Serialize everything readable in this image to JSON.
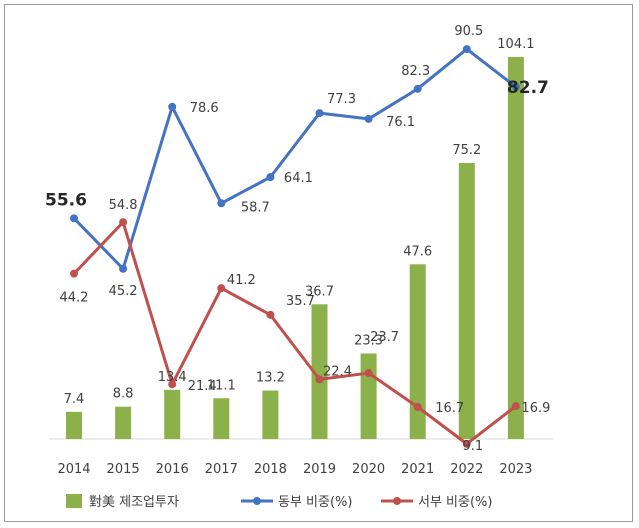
{
  "chart_data": {
    "type": "bar+line",
    "categories": [
      "2014",
      "2015",
      "2016",
      "2017",
      "2018",
      "2019",
      "2020",
      "2021",
      "2022",
      "2023"
    ],
    "bar_series": {
      "name": "對美 제조업투자",
      "color": "#8db14a",
      "values": [
        7.4,
        8.8,
        13.4,
        11.1,
        13.2,
        36.7,
        23.3,
        47.6,
        75.2,
        104.1
      ]
    },
    "line_series": [
      {
        "name": "동부 비중(%)",
        "color": "#4472c4",
        "values": [
          55.6,
          45.2,
          78.6,
          58.7,
          64.1,
          77.3,
          76.1,
          82.3,
          90.5,
          82.7
        ],
        "emphasized_indices": [
          0,
          9
        ]
      },
      {
        "name": "서부 비중(%)",
        "color": "#c0504d",
        "values": [
          44.2,
          54.8,
          21.4,
          41.2,
          35.7,
          22.4,
          23.7,
          16.7,
          9.1,
          16.9
        ]
      }
    ]
  }
}
